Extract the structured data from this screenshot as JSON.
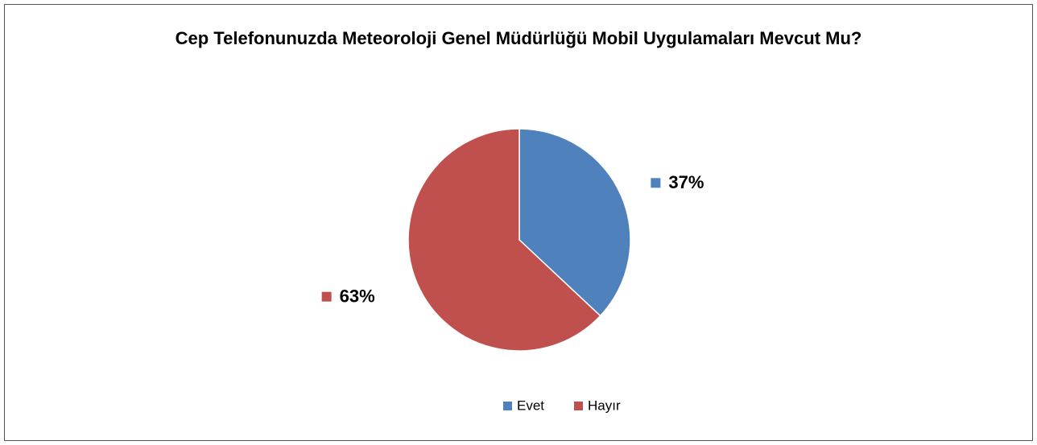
{
  "chart_data": {
    "type": "pie",
    "title": "Cep Telefonunuzda Meteoroloji Genel Müdürlüğü Mobil Uygulamaları Mevcut Mu?",
    "categories": [
      "Evet",
      "Hayır"
    ],
    "values": [
      37,
      63
    ],
    "value_labels": [
      "37%",
      "63%"
    ],
    "colors": [
      "#4f81bd",
      "#c0504d"
    ],
    "legend": "bottom"
  }
}
